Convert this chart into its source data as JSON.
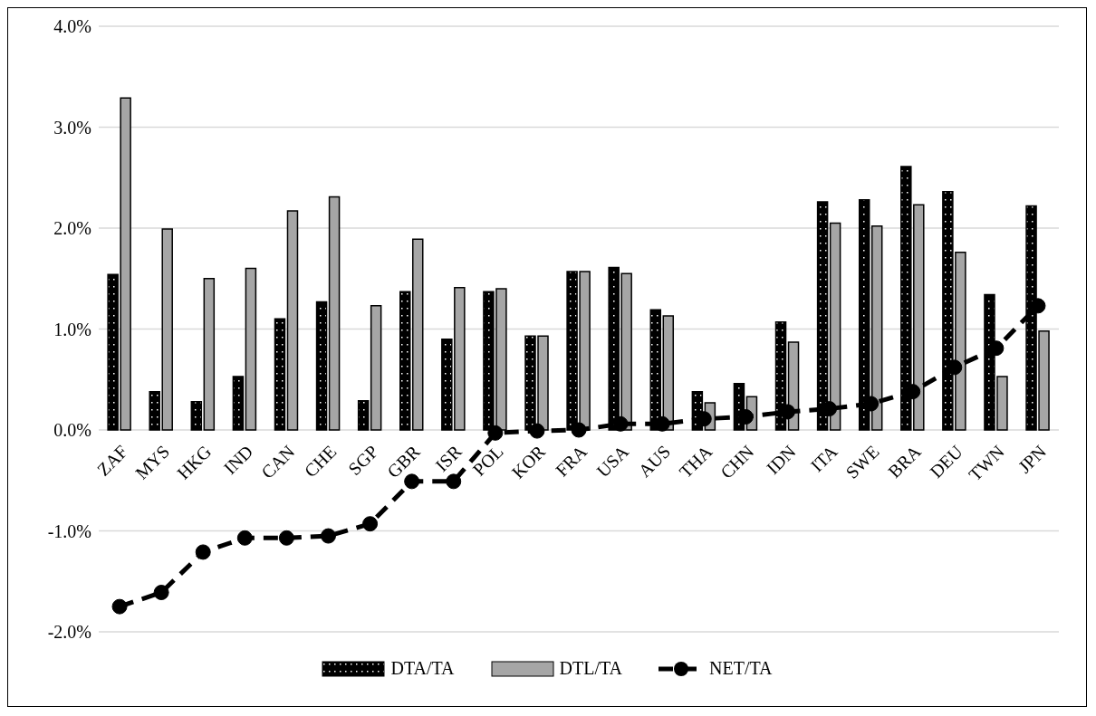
{
  "chart_data": {
    "type": "bar",
    "categories": [
      "ZAF",
      "MYS",
      "HKG",
      "IND",
      "CAN",
      "CHE",
      "SGP",
      "GBR",
      "ISR",
      "POL",
      "KOR",
      "FRA",
      "USA",
      "AUS",
      "THA",
      "CHN",
      "IDN",
      "ITA",
      "SWE",
      "BRA",
      "DEU",
      "TWN",
      "JPN"
    ],
    "series": [
      {
        "name": "DTA/TA",
        "color": "#000000",
        "values": [
          1.54,
          0.38,
          0.28,
          0.53,
          1.1,
          1.27,
          0.29,
          1.37,
          0.9,
          1.37,
          0.93,
          1.57,
          1.61,
          1.19,
          0.38,
          0.46,
          1.07,
          2.26,
          2.28,
          2.61,
          2.36,
          1.34,
          2.22
        ]
      },
      {
        "name": "DTL/TA",
        "color": "#a6a6a6",
        "values": [
          3.29,
          1.99,
          1.5,
          1.6,
          2.17,
          2.31,
          1.23,
          1.89,
          1.41,
          1.4,
          0.93,
          1.57,
          1.55,
          1.13,
          0.27,
          0.33,
          0.87,
          2.05,
          2.02,
          2.23,
          1.76,
          0.53,
          0.98
        ]
      },
      {
        "name": "NET/TA",
        "type": "line",
        "color": "#000000",
        "marker": "circle",
        "line_style": "dashed",
        "values": [
          -1.75,
          -1.61,
          -1.21,
          -1.07,
          -1.07,
          -1.05,
          -0.93,
          -0.51,
          -0.51,
          -0.03,
          -0.01,
          0.0,
          0.06,
          0.06,
          0.11,
          0.13,
          0.18,
          0.21,
          0.26,
          0.38,
          0.62,
          0.81,
          1.23
        ]
      }
    ],
    "ylim": [
      -2,
      4
    ],
    "yticks": [
      {
        "value": -2,
        "label": "-2.0%"
      },
      {
        "value": -1,
        "label": "-1.0%"
      },
      {
        "value": 0,
        "label": "0.0%"
      },
      {
        "value": 1,
        "label": "1.0%"
      },
      {
        "value": 2,
        "label": "2.0%"
      },
      {
        "value": 3,
        "label": "3.0%"
      },
      {
        "value": 4,
        "label": "4.0%"
      }
    ],
    "grid": "y",
    "legend": "bottom"
  }
}
